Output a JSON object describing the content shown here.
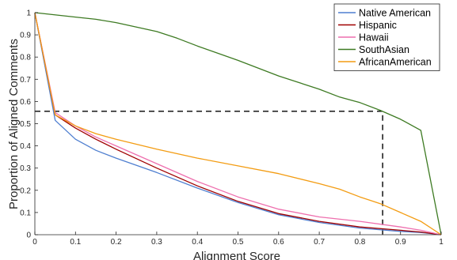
{
  "chart_data": {
    "type": "line",
    "xlabel": "Alignment Score",
    "ylabel": "Proportion of Aligned Comments",
    "xlim": [
      0,
      1
    ],
    "ylim": [
      0,
      1
    ],
    "x_ticks": [
      "0",
      "0.1",
      "0.2",
      "0.3",
      "0.4",
      "0.5",
      "0.6",
      "0.7",
      "0.8",
      "0.9",
      "1"
    ],
    "y_ticks": [
      "0",
      "0.1",
      "0.2",
      "0.3",
      "0.4",
      "0.5",
      "0.6",
      "0.7",
      "0.8",
      "0.9",
      "1"
    ],
    "grid": false,
    "legend_position": "top-right",
    "series": [
      {
        "name": "Native American",
        "color": "#4f7fd0",
        "x": [
          0,
          0.05,
          0.1,
          0.15,
          0.2,
          0.3,
          0.4,
          0.5,
          0.6,
          0.7,
          0.8,
          0.9,
          0.95,
          1
        ],
        "y": [
          1,
          0.515,
          0.43,
          0.38,
          0.345,
          0.28,
          0.21,
          0.145,
          0.09,
          0.055,
          0.03,
          0.015,
          0.01,
          0
        ]
      },
      {
        "name": "Hispanic",
        "color": "#a00000",
        "x": [
          0,
          0.05,
          0.1,
          0.15,
          0.2,
          0.3,
          0.4,
          0.5,
          0.6,
          0.7,
          0.8,
          0.9,
          0.95,
          1
        ],
        "y": [
          1,
          0.54,
          0.48,
          0.43,
          0.385,
          0.3,
          0.22,
          0.15,
          0.095,
          0.06,
          0.035,
          0.02,
          0.012,
          0
        ]
      },
      {
        "name": "Hawaii",
        "color": "#ee6fae",
        "x": [
          0,
          0.05,
          0.1,
          0.15,
          0.2,
          0.3,
          0.4,
          0.5,
          0.6,
          0.7,
          0.8,
          0.9,
          0.95,
          1
        ],
        "y": [
          1,
          0.55,
          0.49,
          0.44,
          0.4,
          0.32,
          0.24,
          0.17,
          0.115,
          0.08,
          0.06,
          0.035,
          0.02,
          0
        ]
      },
      {
        "name": "SouthAsian",
        "color": "#3d7a22",
        "x": [
          0,
          0.1,
          0.15,
          0.2,
          0.3,
          0.35,
          0.4,
          0.5,
          0.6,
          0.7,
          0.75,
          0.8,
          0.85,
          0.9,
          0.95,
          1
        ],
        "y": [
          1,
          0.98,
          0.97,
          0.955,
          0.915,
          0.885,
          0.85,
          0.785,
          0.715,
          0.655,
          0.62,
          0.595,
          0.56,
          0.52,
          0.47,
          0
        ]
      },
      {
        "name": "AfricanAmerican",
        "color": "#f39c12",
        "x": [
          0,
          0.05,
          0.1,
          0.15,
          0.2,
          0.3,
          0.4,
          0.5,
          0.6,
          0.7,
          0.75,
          0.8,
          0.85,
          0.9,
          0.95,
          1
        ],
        "y": [
          1,
          0.54,
          0.49,
          0.455,
          0.43,
          0.385,
          0.345,
          0.31,
          0.275,
          0.23,
          0.205,
          0.17,
          0.14,
          0.1,
          0.06,
          0
        ]
      }
    ],
    "annotations": [
      {
        "type": "dashed-guide",
        "color": "#000000",
        "points": [
          [
            0,
            0.556
          ],
          [
            0.856,
            0.556
          ],
          [
            0.856,
            0
          ]
        ]
      }
    ]
  }
}
